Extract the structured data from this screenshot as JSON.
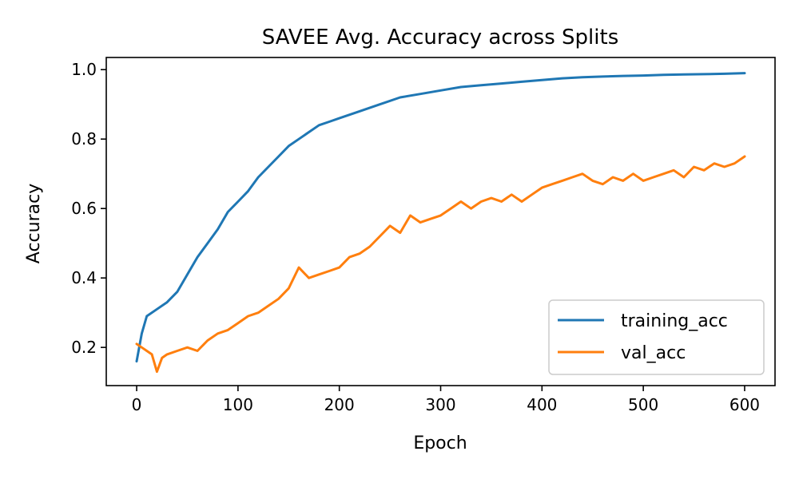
{
  "chart_data": {
    "type": "line",
    "title": "SAVEE Avg. Accuracy across Splits",
    "xlabel": "Epoch",
    "ylabel": "Accuracy",
    "xlim": [
      -30,
      630
    ],
    "ylim": [
      0.09,
      1.035
    ],
    "xticks": [
      0,
      100,
      200,
      300,
      400,
      500,
      600
    ],
    "yticks": [
      0.2,
      0.4,
      0.6,
      0.8,
      1.0
    ],
    "xtick_labels": [
      "0",
      "100",
      "200",
      "300",
      "400",
      "500",
      "600"
    ],
    "ytick_labels": [
      "0.2",
      "0.4",
      "0.6",
      "0.8",
      "1.0"
    ],
    "grid": false,
    "legend_position": "lower-right",
    "series": [
      {
        "name": "training_acc",
        "color": "#1f77b4",
        "x": [
          0,
          5,
          10,
          20,
          30,
          40,
          50,
          60,
          70,
          80,
          90,
          100,
          110,
          120,
          130,
          140,
          150,
          160,
          170,
          180,
          190,
          200,
          220,
          240,
          260,
          280,
          300,
          320,
          340,
          360,
          380,
          400,
          420,
          440,
          460,
          480,
          500,
          520,
          540,
          560,
          580,
          600
        ],
        "y": [
          0.16,
          0.24,
          0.29,
          0.31,
          0.33,
          0.36,
          0.41,
          0.46,
          0.5,
          0.54,
          0.59,
          0.62,
          0.65,
          0.69,
          0.72,
          0.75,
          0.78,
          0.8,
          0.82,
          0.84,
          0.85,
          0.86,
          0.88,
          0.9,
          0.92,
          0.93,
          0.94,
          0.95,
          0.955,
          0.96,
          0.965,
          0.97,
          0.975,
          0.978,
          0.98,
          0.982,
          0.983,
          0.985,
          0.986,
          0.987,
          0.988,
          0.99
        ]
      },
      {
        "name": "val_acc",
        "color": "#ff7f0e",
        "x": [
          0,
          5,
          10,
          15,
          20,
          25,
          30,
          40,
          50,
          60,
          70,
          80,
          90,
          100,
          110,
          120,
          130,
          140,
          150,
          160,
          170,
          180,
          190,
          200,
          210,
          220,
          230,
          240,
          250,
          260,
          270,
          280,
          290,
          300,
          310,
          320,
          330,
          340,
          350,
          360,
          370,
          380,
          390,
          400,
          410,
          420,
          430,
          440,
          450,
          460,
          470,
          480,
          490,
          500,
          510,
          520,
          530,
          540,
          550,
          560,
          570,
          580,
          590,
          600
        ],
        "y": [
          0.21,
          0.2,
          0.19,
          0.18,
          0.13,
          0.17,
          0.18,
          0.19,
          0.2,
          0.19,
          0.22,
          0.24,
          0.25,
          0.27,
          0.29,
          0.3,
          0.32,
          0.34,
          0.37,
          0.43,
          0.4,
          0.41,
          0.42,
          0.43,
          0.46,
          0.47,
          0.49,
          0.52,
          0.55,
          0.53,
          0.58,
          0.56,
          0.57,
          0.58,
          0.6,
          0.62,
          0.6,
          0.62,
          0.63,
          0.62,
          0.64,
          0.62,
          0.64,
          0.66,
          0.67,
          0.68,
          0.69,
          0.7,
          0.68,
          0.67,
          0.69,
          0.68,
          0.7,
          0.68,
          0.69,
          0.7,
          0.71,
          0.69,
          0.72,
          0.71,
          0.73,
          0.72,
          0.73,
          0.75
        ]
      }
    ]
  }
}
